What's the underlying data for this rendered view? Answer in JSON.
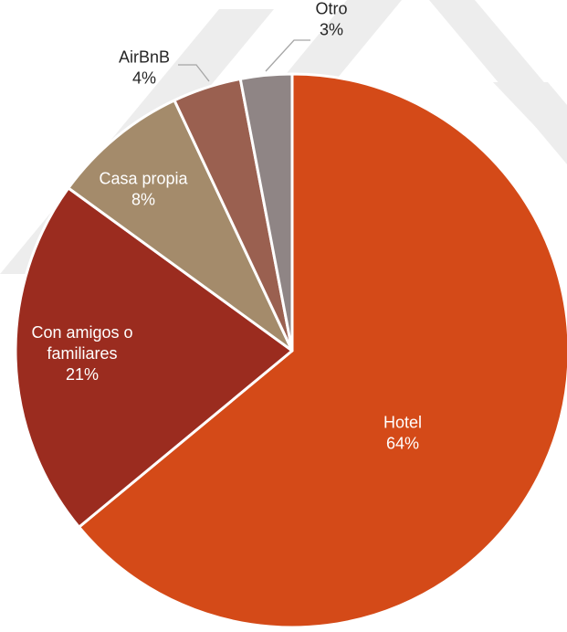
{
  "chart_data": {
    "type": "pie",
    "title": "",
    "categories": [
      "Hotel",
      "Con amigos o familiares",
      "Casa propia",
      "AirBnB",
      "Otro"
    ],
    "values": [
      64,
      21,
      8,
      4,
      3
    ],
    "label_texts": [
      "64%",
      "21%",
      "8%",
      "4%",
      "3%"
    ],
    "label_lines": [
      [
        "Hotel"
      ],
      [
        "Con amigos o",
        "familiares"
      ],
      [
        "Casa propia"
      ],
      [
        "AirBnB"
      ],
      [
        "Otro"
      ]
    ],
    "colors": [
      "#d44a18",
      "#9b2c1f",
      "#a48b6b",
      "#9a6050",
      "#8f8585"
    ],
    "label_colors": [
      "#ffffff",
      "#ffffff",
      "#ffffff",
      "#262626",
      "#262626"
    ],
    "start_angle_deg": 0,
    "direction": "clockwise",
    "legend": "none"
  }
}
